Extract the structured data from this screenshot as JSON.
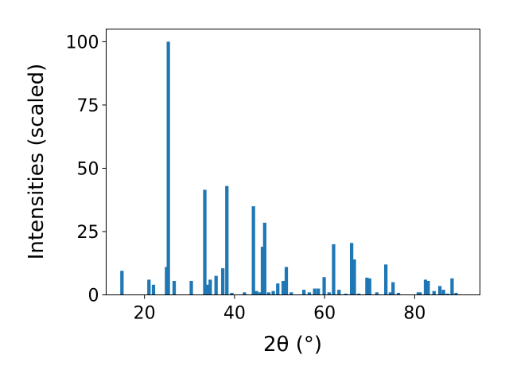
{
  "chart_data": {
    "type": "bar",
    "title": "",
    "xlabel": "2θ (°)",
    "ylabel": "Intensities (scaled)",
    "xlim": [
      11.5,
      94.5
    ],
    "ylim": [
      0,
      105
    ],
    "xticks": [
      20,
      40,
      60,
      80
    ],
    "yticks": [
      0,
      25,
      50,
      75,
      100
    ],
    "grid": false,
    "bar_color": "#1f77b4",
    "bar_width": 0.75,
    "x": [
      15.0,
      21.0,
      22.0,
      24.9,
      25.3,
      26.6,
      30.4,
      33.4,
      33.9,
      34.6,
      35.9,
      37.4,
      38.3,
      39.4,
      42.2,
      44.2,
      44.9,
      45.7,
      46.2,
      46.7,
      47.6,
      48.6,
      49.6,
      50.8,
      51.5,
      52.6,
      55.4,
      56.6,
      57.8,
      58.6,
      59.9,
      61.0,
      62.0,
      63.2,
      64.7,
      66.0,
      66.6,
      67.6,
      69.4,
      70.0,
      71.6,
      73.6,
      74.6,
      75.2,
      76.4,
      80.8,
      81.2,
      82.4,
      83.0,
      84.3,
      85.6,
      86.4,
      87.3,
      88.3,
      89.2
    ],
    "values": [
      9.5,
      6.0,
      4.0,
      11.0,
      100.0,
      5.5,
      5.5,
      41.5,
      4.0,
      6.0,
      7.5,
      10.5,
      43.0,
      0.8,
      1.0,
      35.0,
      1.5,
      1.0,
      19.0,
      28.5,
      1.0,
      1.5,
      4.5,
      5.5,
      11.0,
      1.0,
      2.0,
      1.0,
      2.5,
      2.5,
      7.0,
      1.0,
      20.0,
      2.0,
      0.5,
      20.5,
      14.0,
      0.5,
      6.8,
      6.5,
      1.0,
      12.0,
      1.0,
      5.0,
      0.8,
      1.0,
      1.0,
      6.0,
      5.5,
      1.5,
      3.5,
      2.0,
      0.5,
      6.5,
      0.8
    ]
  }
}
